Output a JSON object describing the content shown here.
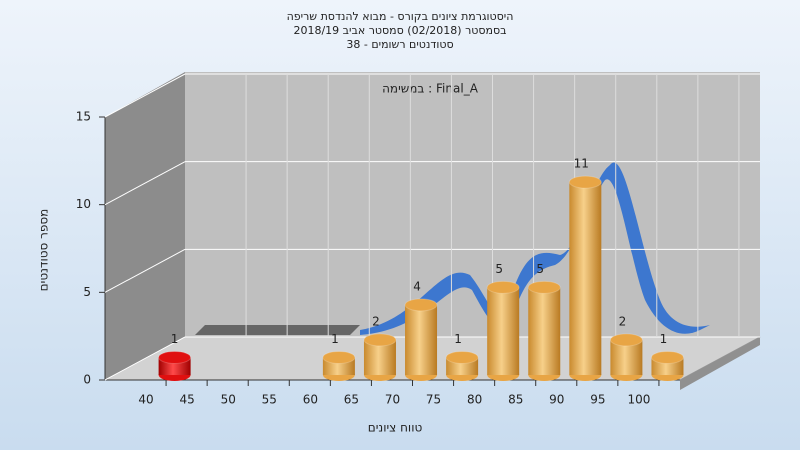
{
  "chart_data": {
    "type": "histogram3d",
    "title": [
      "היסטוגרמת ציונים בקורס - מבוא להנדסת שריפה",
      "בסמסטר  (02/2018)  סמסטר אביב 2018/19",
      "סטודנטים רשומים - 38"
    ],
    "annotation": "במשימה : Final_A",
    "x_label": "טווח ציונים",
    "y_label": "מספר סטודנטים",
    "x": [
      40,
      60,
      65,
      70,
      75,
      80,
      85,
      90,
      95,
      100
    ],
    "values": [
      1,
      1,
      2,
      4,
      1,
      5,
      5,
      11,
      2,
      1
    ],
    "colors": [
      "#e01010",
      "#e8a545",
      "#e8a545",
      "#e8a545",
      "#e8a545",
      "#e8a545",
      "#e8a545",
      "#e8a545",
      "#e8a545",
      "#e8a545"
    ],
    "xlim": [
      35,
      105
    ],
    "xticks": [
      40,
      45,
      50,
      55,
      60,
      65,
      70,
      75,
      80,
      85,
      90,
      95,
      100
    ],
    "ylim": [
      0,
      15
    ],
    "yticks": [
      0,
      5,
      10,
      15
    ],
    "grid": true
  }
}
